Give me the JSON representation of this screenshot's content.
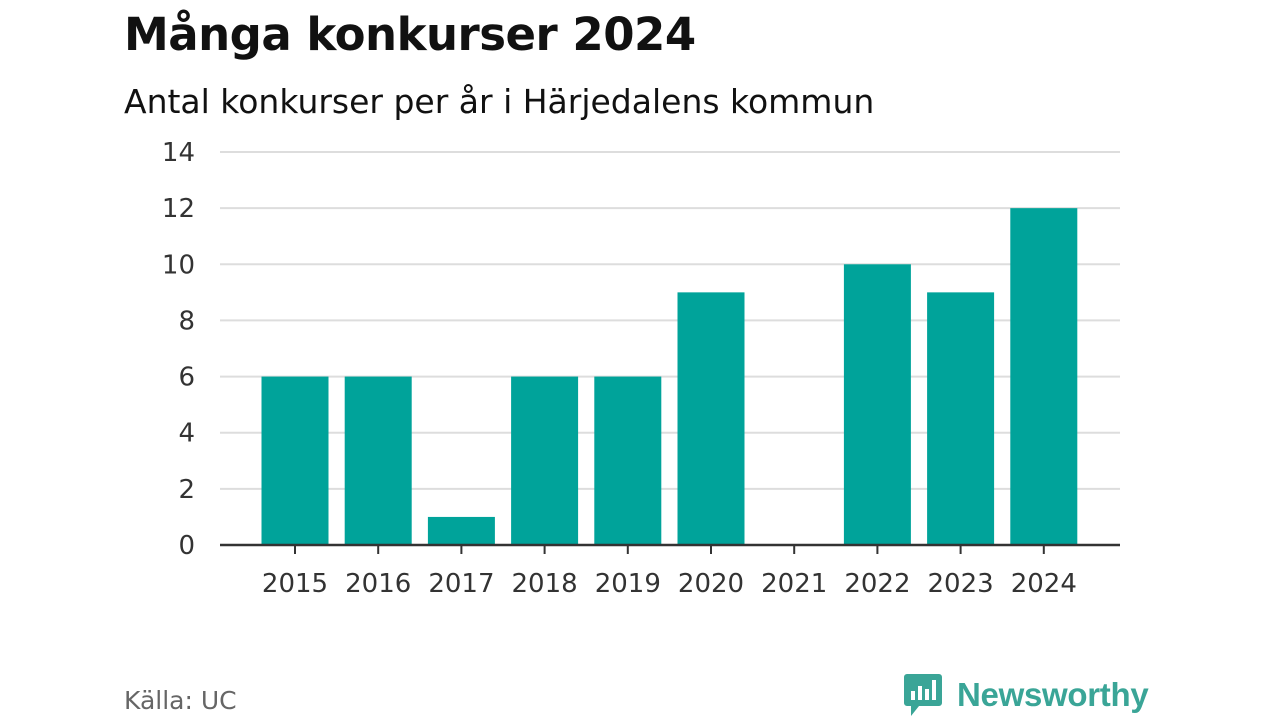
{
  "chart_data": {
    "type": "bar",
    "title": "Många konkurser 2024",
    "subtitle": "Antal konkurser per år i Härjedalens kommun",
    "categories": [
      "2015",
      "2016",
      "2017",
      "2018",
      "2019",
      "2020",
      "2021",
      "2022",
      "2023",
      "2024"
    ],
    "values": [
      6,
      6,
      1,
      6,
      6,
      9,
      0,
      10,
      9,
      12
    ],
    "ylim": [
      0,
      14
    ],
    "yticks": [
      "0",
      "2",
      "4",
      "6",
      "8",
      "10",
      "12",
      "14"
    ],
    "xlabel": "",
    "ylabel": "",
    "grid": true,
    "bar_color": "#00a39a",
    "grid_color": "#dddddd",
    "axis_color": "#333333"
  },
  "footer": {
    "source": "Källa: UC",
    "brand": "Newsworthy",
    "brand_icon": "newsworthy-logo-icon",
    "brand_color": "#3aa597"
  }
}
